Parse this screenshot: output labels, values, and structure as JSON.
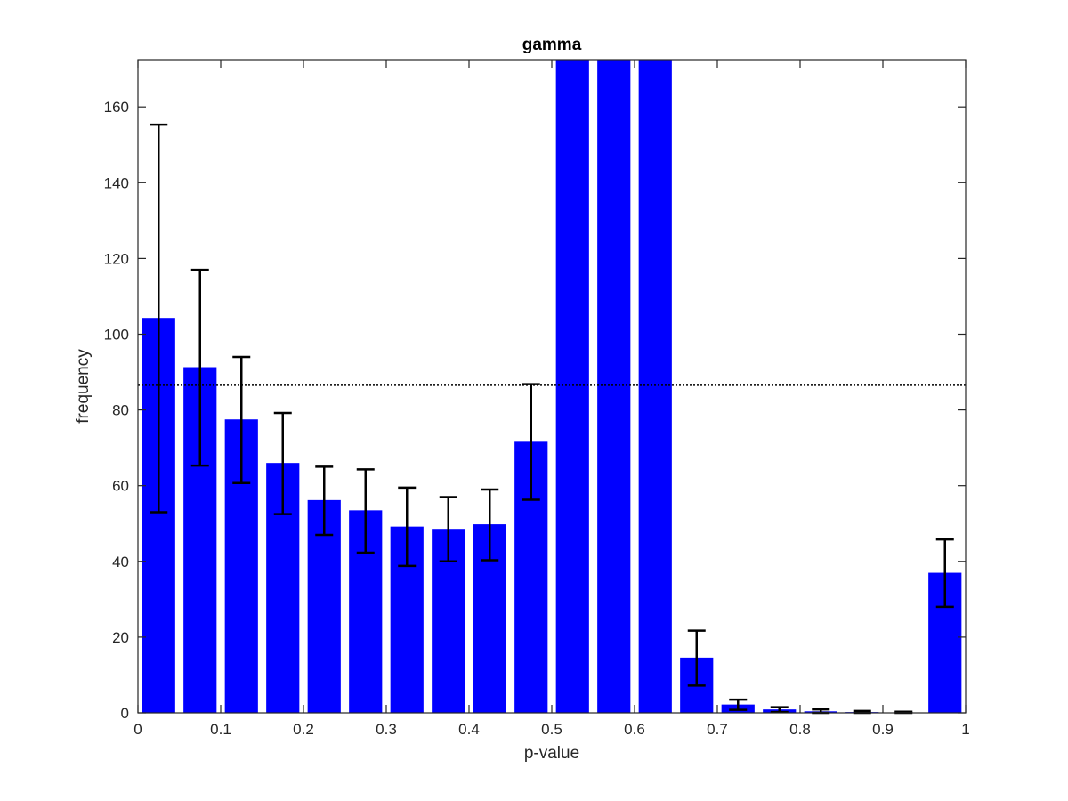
{
  "chart_data": {
    "type": "bar",
    "title": "gamma",
    "xlabel": "p-value",
    "ylabel": "frequency",
    "xlim": [
      0,
      1
    ],
    "ylim": [
      0,
      172.5
    ],
    "x_ticks": [
      0,
      0.1,
      0.2,
      0.3,
      0.4,
      0.5,
      0.6,
      0.7,
      0.8,
      0.9,
      1
    ],
    "x_tick_labels": [
      "0",
      "0.1",
      "0.2",
      "0.3",
      "0.4",
      "0.5",
      "0.6",
      "0.7",
      "0.8",
      "0.9",
      "1"
    ],
    "y_ticks": [
      0,
      20,
      40,
      60,
      80,
      100,
      120,
      140,
      160
    ],
    "y_tick_labels": [
      "0",
      "20",
      "40",
      "60",
      "80",
      "100",
      "120",
      "140",
      "160"
    ],
    "bar_width": 0.04,
    "bar_color": "#0000ff",
    "errorbar_color": "#000000",
    "reference_line": {
      "y": 86.5,
      "style": "dotted",
      "color": "#000000"
    },
    "grid": false,
    "bars": [
      {
        "x": 0.025,
        "value": 104.3,
        "err_low": 53.0,
        "err_high": 155.3
      },
      {
        "x": 0.075,
        "value": 91.3,
        "err_low": 65.3,
        "err_high": 117.0
      },
      {
        "x": 0.125,
        "value": 77.5,
        "err_low": 60.7,
        "err_high": 94.0
      },
      {
        "x": 0.175,
        "value": 66.0,
        "err_low": 52.5,
        "err_high": 79.2
      },
      {
        "x": 0.225,
        "value": 56.2,
        "err_low": 47.0,
        "err_high": 65.0
      },
      {
        "x": 0.275,
        "value": 53.5,
        "err_low": 42.3,
        "err_high": 64.3
      },
      {
        "x": 0.325,
        "value": 49.2,
        "err_low": 38.8,
        "err_high": 59.5
      },
      {
        "x": 0.375,
        "value": 48.6,
        "err_low": 40.0,
        "err_high": 57.0
      },
      {
        "x": 0.425,
        "value": 49.8,
        "err_low": 40.3,
        "err_high": 59.0
      },
      {
        "x": 0.475,
        "value": 71.6,
        "err_low": 56.3,
        "err_high": 86.8
      },
      {
        "x": 0.525,
        "value": 172.5,
        "clipped": true
      },
      {
        "x": 0.575,
        "value": 172.5,
        "clipped": true
      },
      {
        "x": 0.625,
        "value": 172.5,
        "clipped": true
      },
      {
        "x": 0.675,
        "value": 14.6,
        "err_low": 7.2,
        "err_high": 21.7
      },
      {
        "x": 0.725,
        "value": 2.2,
        "err_low": 0.8,
        "err_high": 3.5
      },
      {
        "x": 0.775,
        "value": 0.9,
        "err_low": 0.2,
        "err_high": 1.5
      },
      {
        "x": 0.825,
        "value": 0.4,
        "err_low": 0.0,
        "err_high": 0.9
      },
      {
        "x": 0.875,
        "value": 0.2,
        "err_low": 0.0,
        "err_high": 0.5
      },
      {
        "x": 0.925,
        "value": 0.1,
        "err_low": 0.0,
        "err_high": 0.3
      },
      {
        "x": 0.975,
        "value": 37.0,
        "err_low": 28.0,
        "err_high": 45.8
      }
    ]
  }
}
